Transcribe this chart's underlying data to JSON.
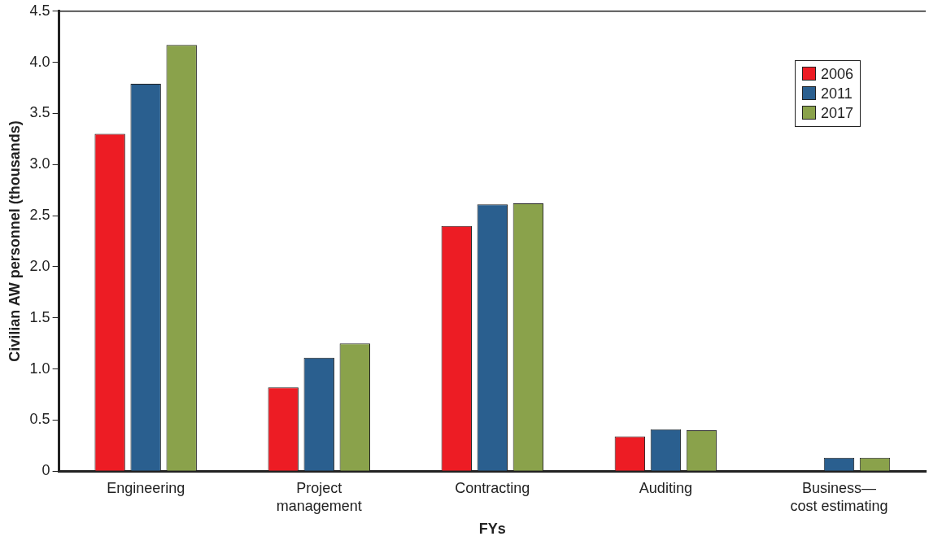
{
  "chart_data": {
    "type": "bar",
    "xlabel": "FYs",
    "ylabel": "Civilian AW personnel (thousands)",
    "categories": [
      "Engineering",
      "Project management",
      "Contracting",
      "Auditing",
      "Business— cost estimating"
    ],
    "series": [
      {
        "name": "2006",
        "color": "#ed1c24",
        "values": [
          3.3,
          0.82,
          2.4,
          0.34,
          null
        ]
      },
      {
        "name": "2011",
        "color": "#2a5f8f",
        "values": [
          3.79,
          1.11,
          2.61,
          0.41,
          0.13
        ]
      },
      {
        "name": "2017",
        "color": "#8aa24b",
        "values": [
          4.17,
          1.25,
          2.62,
          0.4,
          0.13
        ]
      }
    ],
    "ylim": [
      0,
      4.5
    ],
    "yticks": [
      0,
      0.5,
      {
        "value": 1,
        "label": "1.0"
      },
      1.5,
      {
        "value": 2,
        "label": "2.0"
      },
      2.5,
      {
        "value": 3,
        "label": "3.0"
      },
      3.5,
      {
        "value": 4,
        "label": "4.0"
      },
      4.5
    ],
    "grid": false,
    "legend": "top right"
  }
}
